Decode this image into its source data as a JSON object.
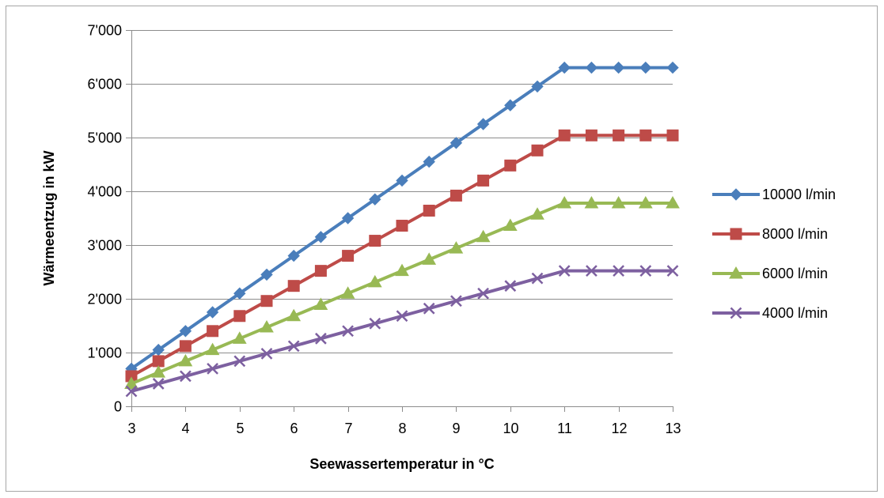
{
  "chart_data": {
    "type": "line",
    "title": "",
    "xlabel": "Seewassertemperatur in °C",
    "ylabel": "Wärmeentzug in kW",
    "x": [
      3,
      3.5,
      4,
      4.5,
      5,
      5.5,
      6,
      6.5,
      7,
      7.5,
      8,
      8.5,
      9,
      9.5,
      10,
      10.5,
      11,
      11.5,
      12,
      12.5,
      13
    ],
    "xlim": [
      3,
      13
    ],
    "ylim": [
      0,
      7000
    ],
    "x_ticks": [
      3,
      4,
      5,
      6,
      7,
      8,
      9,
      10,
      11,
      12,
      13
    ],
    "x_tick_labels": [
      "3",
      "4",
      "5",
      "6",
      "7",
      "8",
      "9",
      "10",
      "11",
      "12",
      "13"
    ],
    "y_ticks": [
      0,
      1000,
      2000,
      3000,
      4000,
      5000,
      6000,
      7000
    ],
    "y_tick_labels": [
      "0",
      "1'000",
      "2'000",
      "3'000",
      "4'000",
      "5'000",
      "6'000",
      "7'000"
    ],
    "grid": "horizontal",
    "legend_position": "right",
    "series": [
      {
        "name": "10000 l/min",
        "color": "#4a7ebb",
        "marker": "diamond",
        "values": [
          700,
          1050,
          1400,
          1750,
          2100,
          2450,
          2800,
          3150,
          3500,
          3850,
          4200,
          4550,
          4900,
          5250,
          5600,
          5950,
          6300,
          6300,
          6300,
          6300,
          6300
        ]
      },
      {
        "name": "8000 l/min",
        "color": "#be4b48",
        "marker": "square",
        "values": [
          560,
          840,
          1120,
          1400,
          1680,
          1960,
          2240,
          2520,
          2800,
          3080,
          3360,
          3640,
          3920,
          4200,
          4480,
          4760,
          5040,
          5040,
          5040,
          5040,
          5040
        ]
      },
      {
        "name": "6000 l/min",
        "color": "#98b954",
        "marker": "triangle",
        "values": [
          420,
          630,
          840,
          1050,
          1260,
          1470,
          1680,
          1890,
          2100,
          2310,
          2520,
          2730,
          2940,
          3150,
          3360,
          3570,
          3780,
          3780,
          3780,
          3780,
          3780
        ]
      },
      {
        "name": "4000 l/min",
        "color": "#7d60a0",
        "marker": "x",
        "values": [
          280,
          420,
          560,
          700,
          840,
          980,
          1120,
          1260,
          1400,
          1540,
          1680,
          1820,
          1960,
          2100,
          2240,
          2380,
          2520,
          2520,
          2520,
          2520,
          2520
        ]
      }
    ]
  }
}
